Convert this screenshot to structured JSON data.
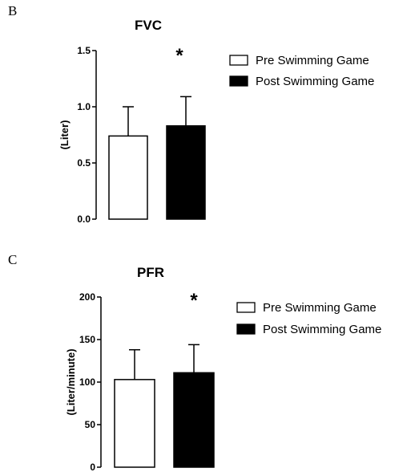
{
  "panels": [
    {
      "letter": "B"
    },
    {
      "letter": "C"
    }
  ],
  "chart_data": [
    {
      "type": "bar",
      "title": "FVC",
      "ylabel": "(Liter)",
      "xlabel": "",
      "ylim": [
        0,
        1.5
      ],
      "yticks": [
        "0.0",
        "0.5",
        "1.0",
        "1.5"
      ],
      "ytick_values": [
        0,
        0.5,
        1.0,
        1.5
      ],
      "series": [
        {
          "name": "Pre Swimming Game",
          "values": [
            0.74
          ],
          "error": [
            0.26
          ],
          "color": "#ffffff"
        },
        {
          "name": "Post Swimming Game",
          "values": [
            0.83
          ],
          "error": [
            0.26
          ],
          "color": "#000000"
        }
      ],
      "annotation": "*",
      "grid": false,
      "legend": "top-right"
    },
    {
      "type": "bar",
      "title": "PFR",
      "ylabel": "(Liter/minute)",
      "xlabel": "",
      "ylim": [
        0,
        200
      ],
      "yticks": [
        "0",
        "50",
        "100",
        "150",
        "200"
      ],
      "ytick_values": [
        0,
        50,
        100,
        150,
        200
      ],
      "series": [
        {
          "name": "Pre Swimming Game",
          "values": [
            103
          ],
          "error": [
            35
          ],
          "color": "#ffffff"
        },
        {
          "name": "Post Swimming Game",
          "values": [
            111
          ],
          "error": [
            33
          ],
          "color": "#000000"
        }
      ],
      "annotation": "*",
      "grid": false,
      "legend": "top-right"
    }
  ]
}
